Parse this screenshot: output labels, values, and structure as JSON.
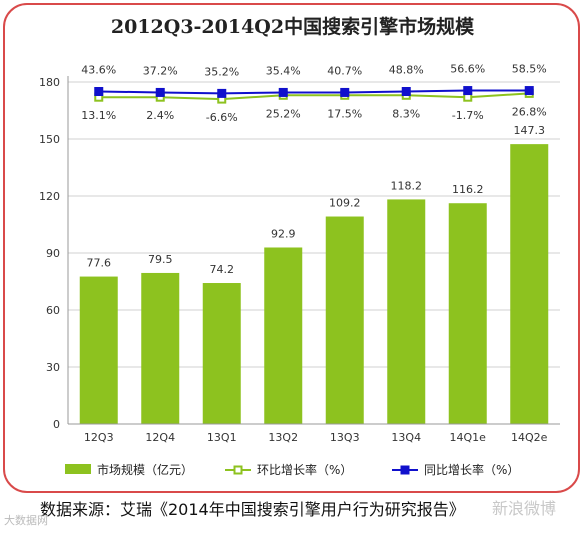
{
  "chart_data": {
    "type": "bar",
    "title": "2012Q3-2014Q2中国搜索引擎市场规模",
    "categories": [
      "12Q3",
      "12Q4",
      "13Q1",
      "13Q2",
      "13Q3",
      "13Q4",
      "14Q1e",
      "14Q2e"
    ],
    "y_ticks": [
      "0",
      "30",
      "60",
      "90",
      "120",
      "150",
      "180"
    ],
    "ylim": [
      0,
      180
    ],
    "grid": true,
    "legend_position": "bottom",
    "series": [
      {
        "name": "市场规模（亿元）",
        "kind": "bar",
        "color": "#8dc21f",
        "values": [
          77.6,
          79.5,
          74.2,
          92.9,
          109.2,
          118.2,
          116.2,
          147.3
        ],
        "labels": [
          "77.6",
          "79.5",
          "74.2",
          "92.9",
          "109.2",
          "118.2",
          "116.2",
          "147.3"
        ]
      },
      {
        "name": "环比增长率（%）",
        "kind": "line",
        "color": "#8dc21f",
        "plot_level": [
          172,
          172,
          171,
          173,
          173,
          173,
          172,
          174
        ],
        "labels": [
          "13.1%",
          "2.4%",
          "-6.6%",
          "25.2%",
          "17.5%",
          "8.3%",
          "-1.7%",
          "26.8%"
        ]
      },
      {
        "name": "同比增长率（%）",
        "kind": "line",
        "color": "#1010cc",
        "plot_level": [
          175,
          174.5,
          174,
          174.5,
          174.5,
          175,
          175.5,
          175.5
        ],
        "labels": [
          "43.6%",
          "37.2%",
          "35.2%",
          "35.4%",
          "40.7%",
          "48.8%",
          "56.6%",
          "58.5%"
        ]
      }
    ]
  },
  "source": "数据来源：艾瑞《2014年中国搜索引擎用户行为研究报告》",
  "watermark": "大数据网",
  "watermark2": "新浪微博"
}
